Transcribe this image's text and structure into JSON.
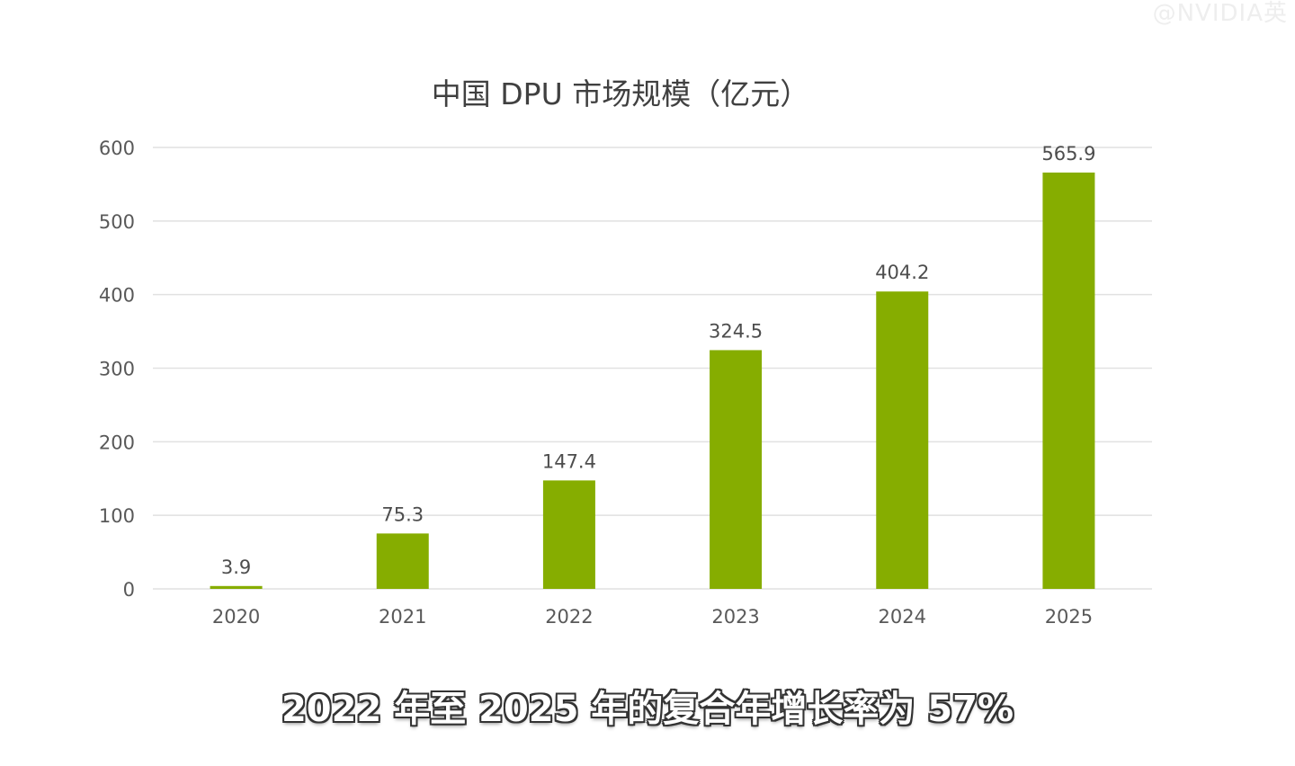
{
  "watermark": "@NVIDIA英",
  "caption": "2022 年至 2025 年的复合年增长率为 57%",
  "colors": {
    "bar": "#86ad00",
    "grid": "#e1e1e1",
    "tick_text": "#595959",
    "title_text": "#404040",
    "label_text": "#4d4d4d"
  },
  "chart_data": {
    "type": "bar",
    "title": "中国 DPU 市场规模（亿元）",
    "categories": [
      "2020",
      "2021",
      "2022",
      "2023",
      "2024",
      "2025"
    ],
    "values": [
      3.9,
      75.3,
      147.4,
      324.5,
      404.2,
      565.9
    ],
    "value_labels": [
      "3.9",
      "75.3",
      "147.4",
      "324.5",
      "404.2",
      "565.9"
    ],
    "y_ticks": [
      0,
      100,
      200,
      300,
      400,
      500,
      600
    ],
    "ylim": [
      0,
      600
    ],
    "xlabel": "",
    "ylabel": "",
    "grid": true,
    "legend": "none"
  }
}
